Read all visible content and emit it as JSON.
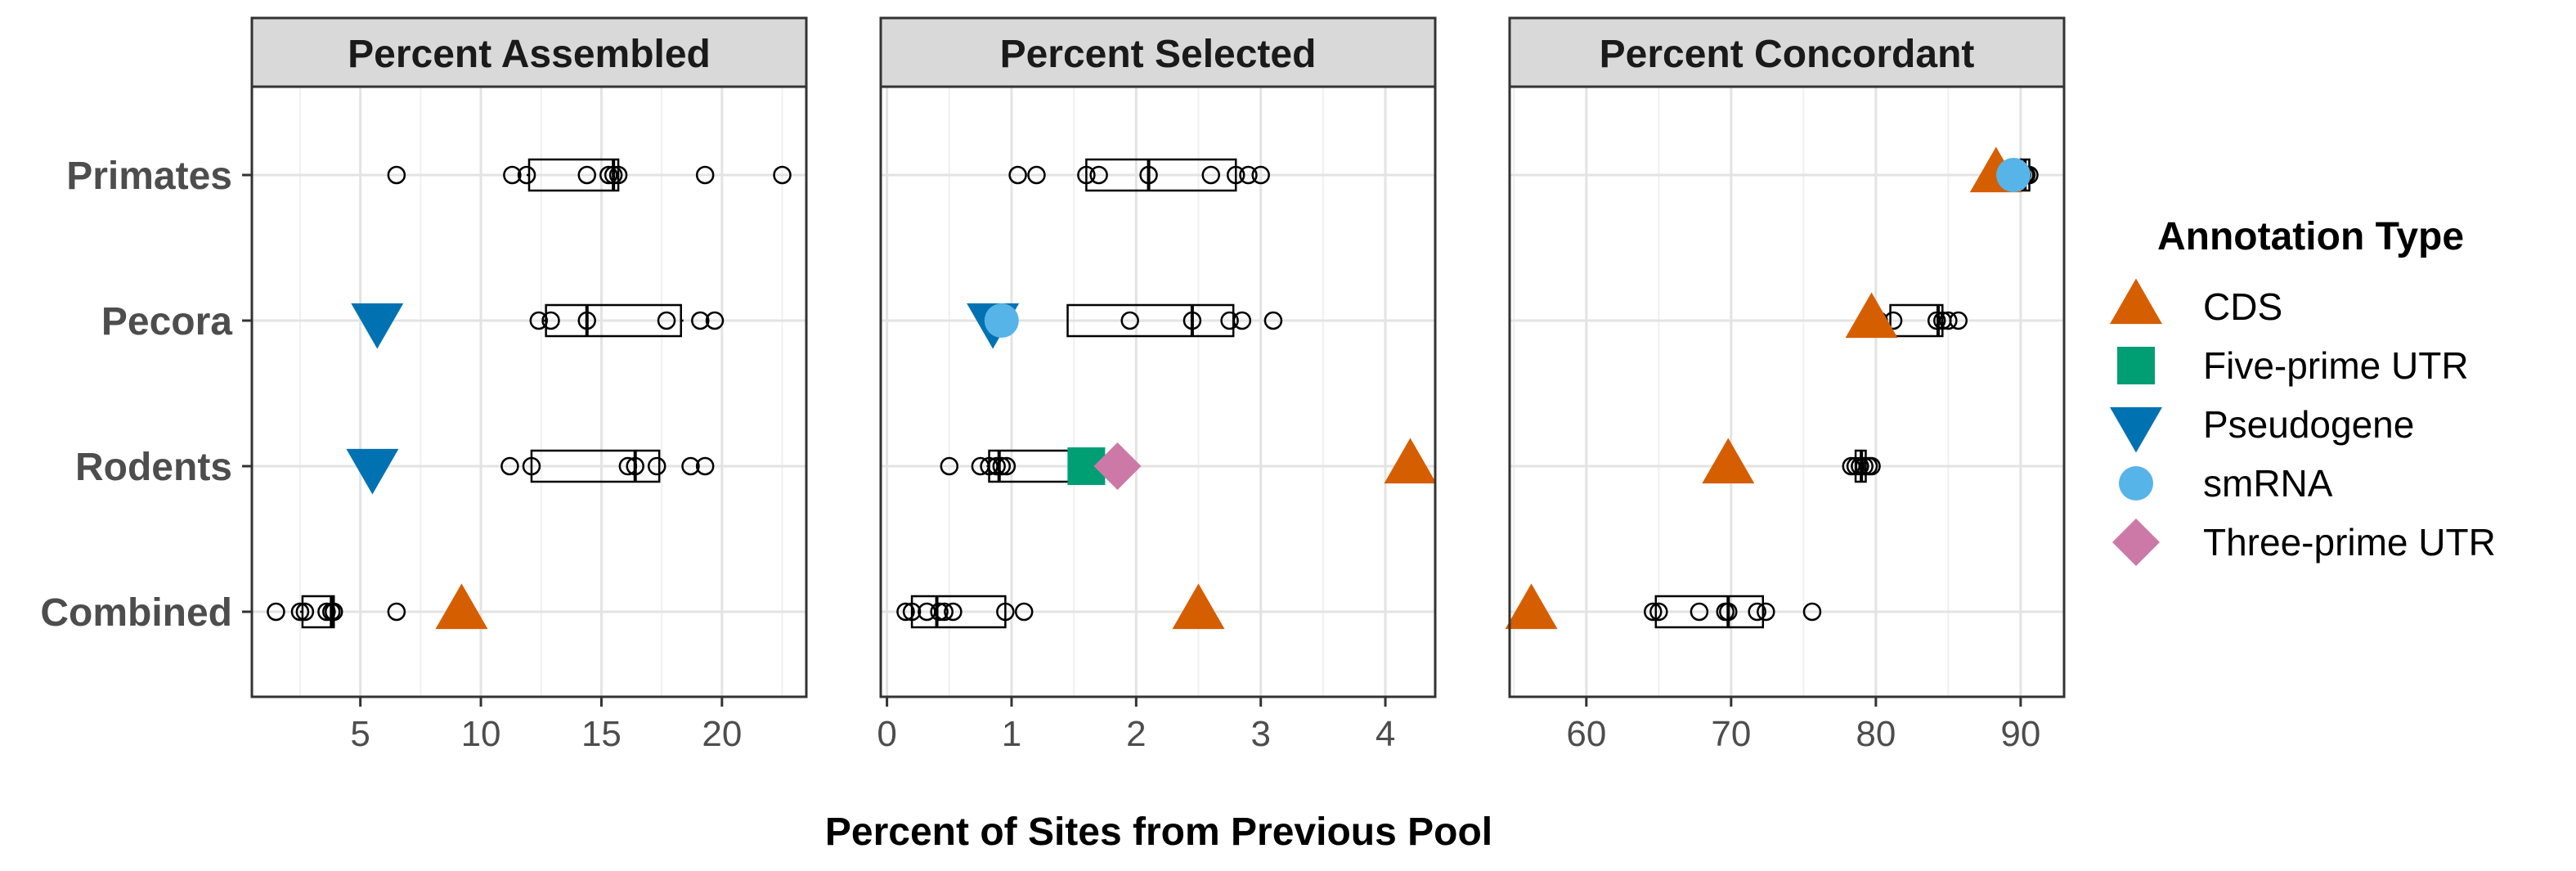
{
  "chart_data": {
    "type": "boxplot-dotplot-faceted",
    "x_axis_title": "Percent of Sites from Previous Pool",
    "categories": [
      "Primates",
      "Pecora",
      "Rodents",
      "Combined"
    ],
    "legend": {
      "title": "Annotation Type",
      "placement": "right",
      "entries": [
        {
          "label": "CDS",
          "shape": "triangle-up",
          "color": "#D55E00"
        },
        {
          "label": "Five-prime UTR",
          "shape": "square",
          "color": "#009E73"
        },
        {
          "label": "Pseudogene",
          "shape": "triangle-down",
          "color": "#0072B2"
        },
        {
          "label": "smRNA",
          "shape": "circle",
          "color": "#56B4E9"
        },
        {
          "label": "Three-prime UTR",
          "shape": "diamond",
          "color": "#CC79A7"
        }
      ]
    },
    "grid": true,
    "panels": [
      {
        "title": "Percent Assembled",
        "xlim": [
          0.5,
          23.5
        ],
        "xticks": [
          5,
          10,
          15,
          20
        ],
        "groups": [
          {
            "category": "Primates",
            "box": [
              11.9,
              12.0,
              15.5,
              15.7,
              15.7
            ],
            "points": [
              6.5,
              11.3,
              11.9,
              14.4,
              15.3,
              15.5,
              15.7,
              19.3,
              22.5
            ]
          },
          {
            "category": "Pecora",
            "box": [
              12.6,
              12.7,
              14.4,
              18.3,
              18.4
            ],
            "points": [
              12.4,
              12.9,
              14.4,
              17.7,
              19.1,
              19.7
            ]
          },
          {
            "category": "Rodents",
            "box": [
              12.1,
              12.1,
              16.4,
              17.4,
              17.4
            ],
            "points": [
              11.2,
              12.1,
              16.1,
              16.4,
              17.3,
              18.7,
              19.3
            ]
          },
          {
            "category": "Combined",
            "box": [
              2.5,
              2.6,
              3.8,
              3.9,
              3.9
            ],
            "points": [
              1.5,
              2.5,
              2.7,
              3.6,
              3.8,
              3.9,
              6.5
            ]
          }
        ],
        "special": [
          {
            "category": "Pecora",
            "type": "Pseudogene",
            "value": 5.7
          },
          {
            "category": "Rodents",
            "type": "Pseudogene",
            "value": 5.5
          },
          {
            "category": "Combined",
            "type": "CDS",
            "value": 9.2
          }
        ]
      },
      {
        "title": "Percent Selected",
        "xlim": [
          -0.05,
          4.4
        ],
        "xticks": [
          0,
          1,
          2,
          3,
          4
        ],
        "groups": [
          {
            "category": "Primates",
            "box": [
              1.6,
              1.6,
              2.1,
              2.8,
              2.8
            ],
            "points": [
              1.05,
              1.2,
              1.6,
              1.7,
              2.1,
              2.6,
              2.8,
              2.9,
              3.0
            ]
          },
          {
            "category": "Pecora",
            "box": [
              1.45,
              1.45,
              2.45,
              2.78,
              2.78
            ],
            "points": [
              1.95,
              2.45,
              2.75,
              2.85,
              3.1
            ]
          },
          {
            "category": "Rodents",
            "box": [
              0.8,
              0.82,
              0.9,
              1.5,
              1.5
            ],
            "points": [
              0.5,
              0.75,
              0.82,
              0.88,
              0.92,
              0.96
            ]
          },
          {
            "category": "Combined",
            "box": [
              0.2,
              0.2,
              0.4,
              0.95,
              0.95
            ],
            "points": [
              0.15,
              0.2,
              0.32,
              0.42,
              0.46,
              0.53,
              0.95,
              1.1
            ]
          }
        ],
        "special": [
          {
            "category": "Pecora",
            "type": "Pseudogene",
            "value": 0.85
          },
          {
            "category": "Pecora",
            "type": "smRNA",
            "value": 0.92
          },
          {
            "category": "Rodents",
            "type": "Five-prime UTR",
            "value": 1.6
          },
          {
            "category": "Rodents",
            "type": "Three-prime UTR",
            "value": 1.85
          },
          {
            "category": "Rodents",
            "type": "CDS",
            "value": 4.2
          },
          {
            "category": "Combined",
            "type": "CDS",
            "value": 2.5
          }
        ]
      },
      {
        "title": "Percent Concordant",
        "xlim": [
          54.7,
          93.0
        ],
        "xticks": [
          60,
          70,
          80,
          90
        ],
        "groups": [
          {
            "category": "Primates",
            "box": [
              89.9,
              90.0,
              90.3,
              90.6,
              90.6
            ],
            "points": [
              89.9,
              90.1,
              90.3,
              90.4,
              90.6
            ]
          },
          {
            "category": "Pecora",
            "box": [
              81.0,
              81.0,
              84.3,
              84.6,
              84.6
            ],
            "points": [
              80.2,
              81.2,
              84.2,
              84.6,
              85.0,
              85.7
            ]
          },
          {
            "category": "Rodents",
            "box": [
              78.6,
              78.6,
              79.0,
              79.3,
              79.3
            ],
            "points": [
              78.3,
              78.6,
              78.9,
              79.2,
              79.5,
              79.7
            ]
          },
          {
            "category": "Combined",
            "box": [
              64.8,
              64.8,
              69.8,
              72.2,
              72.2
            ],
            "points": [
              64.6,
              65.0,
              67.8,
              69.6,
              69.8,
              71.8,
              72.4,
              75.6
            ]
          }
        ],
        "special": [
          {
            "category": "Primates",
            "type": "CDS",
            "value": 88.3
          },
          {
            "category": "Primates",
            "type": "smRNA",
            "value": 89.5
          },
          {
            "category": "Pecora",
            "type": "CDS",
            "value": 79.7
          },
          {
            "category": "Rodents",
            "type": "CDS",
            "value": 69.8
          },
          {
            "category": "Combined",
            "type": "CDS",
            "value": 56.2
          }
        ]
      }
    ]
  }
}
